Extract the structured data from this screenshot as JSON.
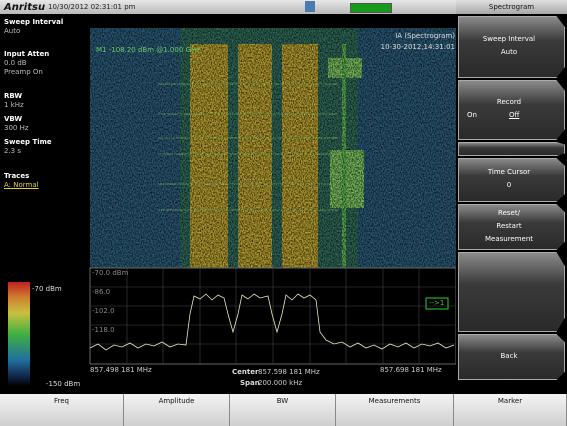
{
  "header": {
    "logo": "Anritsu",
    "datetime": "10/30/2012 02:31:01 pm",
    "menu_title": "Spectrogram"
  },
  "settings": [
    {
      "label": "Sweep Interval",
      "values": [
        "Auto"
      ]
    },
    {
      "label": "Input Atten",
      "values": [
        "0.0 dB",
        "Preamp On"
      ]
    },
    {
      "label": "RBW",
      "values": [
        "1 kHz"
      ]
    },
    {
      "label": "VBW",
      "values": [
        "300 Hz"
      ]
    },
    {
      "label": "Sweep Time",
      "values": [
        "2.3 s"
      ]
    },
    {
      "label": "Traces",
      "values": [
        "A: Normal"
      ]
    }
  ],
  "color_scale": {
    "top": "-70 dBm",
    "bottom": "-150 dBm"
  },
  "display": {
    "marker": "M1 -108.20 dBm @1.000 GHz",
    "mode": "IA (Spectrogram)",
    "timestamp": "10-30-2012,14:31:01",
    "trace_labels": [
      "-70.0 dBm",
      "-86.0",
      "-102.0",
      "-118.0"
    ],
    "marker_box": "-->1",
    "start": "857.498 181 MHz",
    "center_label": "Center",
    "center": "857.598 181 MHz",
    "span_label": "Span",
    "span": "200.000 kHz",
    "stop": "857.698 181 MHz"
  },
  "softkeys": [
    {
      "lines": [
        "Sweep Interval",
        "Auto"
      ]
    },
    {
      "lines": [
        "Record"
      ],
      "options": [
        "On",
        "Off"
      ]
    },
    {
      "lines": [
        "Time Cursor",
        "0"
      ]
    },
    {
      "lines": [
        "Reset/",
        "Restart",
        "Measurement"
      ]
    },
    {
      "lines": [
        "Back"
      ]
    }
  ],
  "tabs": [
    "Freq",
    "Amplitude",
    "BW",
    "Measurements",
    "Marker"
  ]
}
